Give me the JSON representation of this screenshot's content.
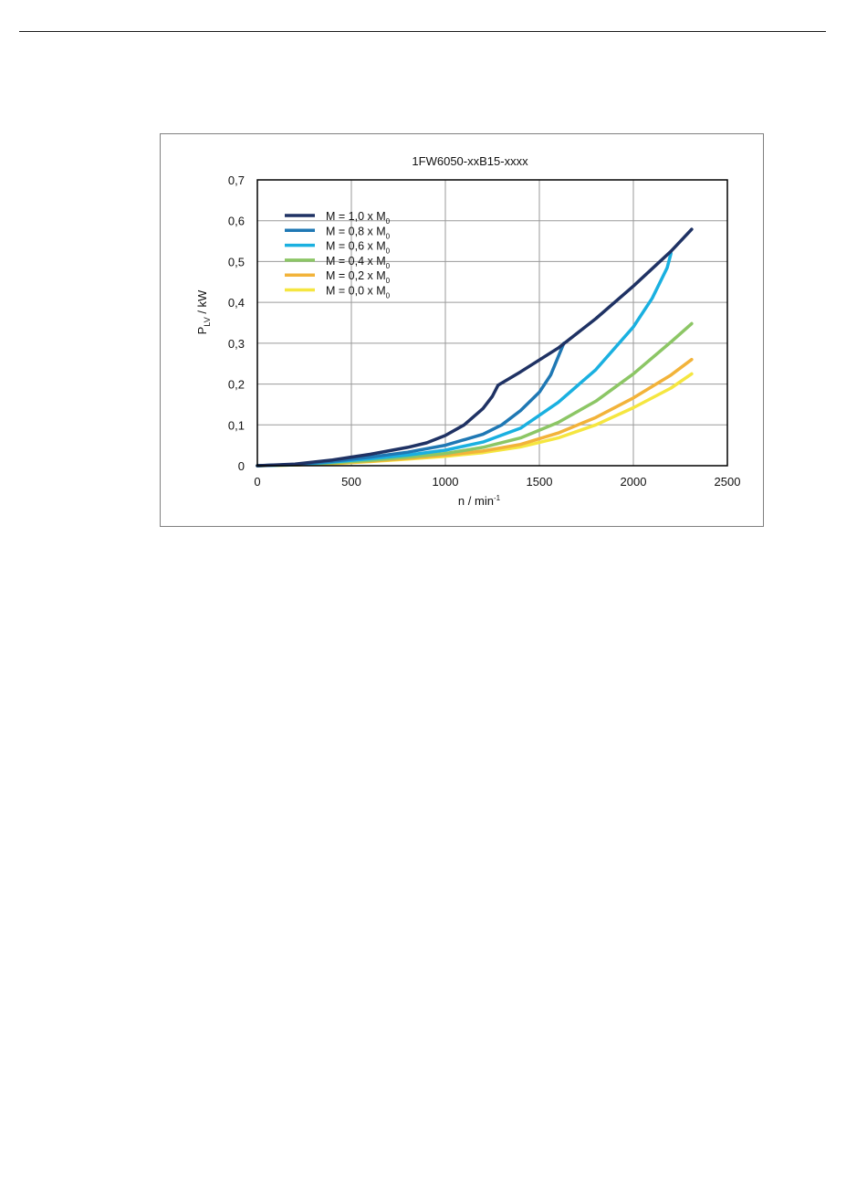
{
  "chart_data": {
    "type": "line",
    "title": "1FW6050-xxB15-xxxx",
    "xlabel": "n / min",
    "xlabel_sup": "-1",
    "ylabel_main": "P",
    "ylabel_sub": "LV",
    "ylabel_unit": " / kW",
    "xlim": [
      0,
      2500
    ],
    "ylim": [
      0,
      0.7
    ],
    "x_ticks": [
      0,
      500,
      1000,
      1500,
      2000,
      2500
    ],
    "x_tick_labels": [
      "0",
      "500",
      "1000",
      "1500",
      "2000",
      "2500"
    ],
    "y_ticks": [
      0,
      0.1,
      0.2,
      0.3,
      0.4,
      0.5,
      0.6,
      0.7
    ],
    "y_tick_labels": [
      "0",
      "0,1",
      "0,2",
      "0,3",
      "0,4",
      "0,5",
      "0,6",
      "0,7"
    ],
    "grid": true,
    "legend_position": "top-left",
    "series": [
      {
        "name": "M = 1,0 x M",
        "name_sub": "0",
        "color": "#1f3264",
        "points": [
          [
            0,
            0
          ],
          [
            200,
            0.004
          ],
          [
            400,
            0.014
          ],
          [
            600,
            0.028
          ],
          [
            800,
            0.045
          ],
          [
            900,
            0.056
          ],
          [
            1000,
            0.074
          ],
          [
            1100,
            0.1
          ],
          [
            1200,
            0.14
          ],
          [
            1250,
            0.17
          ],
          [
            1280,
            0.197
          ],
          [
            1400,
            0.23
          ],
          [
            1600,
            0.288
          ],
          [
            1800,
            0.36
          ],
          [
            2000,
            0.44
          ],
          [
            2200,
            0.525
          ],
          [
            2310,
            0.579
          ]
        ]
      },
      {
        "name": "M = 0,8 x M",
        "name_sub": "0",
        "color": "#1f78b4",
        "points": [
          [
            0,
            0
          ],
          [
            200,
            0.003
          ],
          [
            400,
            0.011
          ],
          [
            600,
            0.021
          ],
          [
            800,
            0.033
          ],
          [
            1000,
            0.05
          ],
          [
            1200,
            0.077
          ],
          [
            1300,
            0.1
          ],
          [
            1400,
            0.135
          ],
          [
            1500,
            0.18
          ],
          [
            1560,
            0.222
          ],
          [
            1630,
            0.3
          ]
        ]
      },
      {
        "name": "M = 0,6 x M",
        "name_sub": "0",
        "color": "#1ab0e0",
        "points": [
          [
            0,
            0
          ],
          [
            200,
            0.003
          ],
          [
            400,
            0.009
          ],
          [
            600,
            0.017
          ],
          [
            800,
            0.026
          ],
          [
            1000,
            0.038
          ],
          [
            1200,
            0.058
          ],
          [
            1400,
            0.092
          ],
          [
            1600,
            0.155
          ],
          [
            1800,
            0.235
          ],
          [
            2000,
            0.34
          ],
          [
            2100,
            0.41
          ],
          [
            2180,
            0.485
          ],
          [
            2200,
            0.52
          ]
        ]
      },
      {
        "name": "M = 0,4 x M",
        "name_sub": "0",
        "color": "#8cc665",
        "points": [
          [
            0,
            0
          ],
          [
            200,
            0.002
          ],
          [
            400,
            0.007
          ],
          [
            600,
            0.013
          ],
          [
            800,
            0.021
          ],
          [
            1000,
            0.03
          ],
          [
            1200,
            0.045
          ],
          [
            1400,
            0.068
          ],
          [
            1600,
            0.106
          ],
          [
            1800,
            0.158
          ],
          [
            2000,
            0.225
          ],
          [
            2200,
            0.303
          ],
          [
            2310,
            0.348
          ]
        ]
      },
      {
        "name": "M = 0,2 x M",
        "name_sub": "0",
        "color": "#f2b33a",
        "points": [
          [
            0,
            0
          ],
          [
            200,
            0.002
          ],
          [
            400,
            0.006
          ],
          [
            600,
            0.011
          ],
          [
            800,
            0.018
          ],
          [
            1000,
            0.026
          ],
          [
            1200,
            0.036
          ],
          [
            1400,
            0.052
          ],
          [
            1600,
            0.08
          ],
          [
            1800,
            0.118
          ],
          [
            2000,
            0.166
          ],
          [
            2200,
            0.222
          ],
          [
            2310,
            0.26
          ]
        ]
      },
      {
        "name": "M = 0,0 x M",
        "name_sub": "0",
        "color": "#f5e640",
        "points": [
          [
            0,
            0
          ],
          [
            200,
            0.002
          ],
          [
            400,
            0.005
          ],
          [
            600,
            0.01
          ],
          [
            800,
            0.016
          ],
          [
            1000,
            0.023
          ],
          [
            1200,
            0.032
          ],
          [
            1400,
            0.046
          ],
          [
            1600,
            0.068
          ],
          [
            1800,
            0.1
          ],
          [
            2000,
            0.142
          ],
          [
            2200,
            0.19
          ],
          [
            2310,
            0.225
          ]
        ]
      }
    ]
  }
}
